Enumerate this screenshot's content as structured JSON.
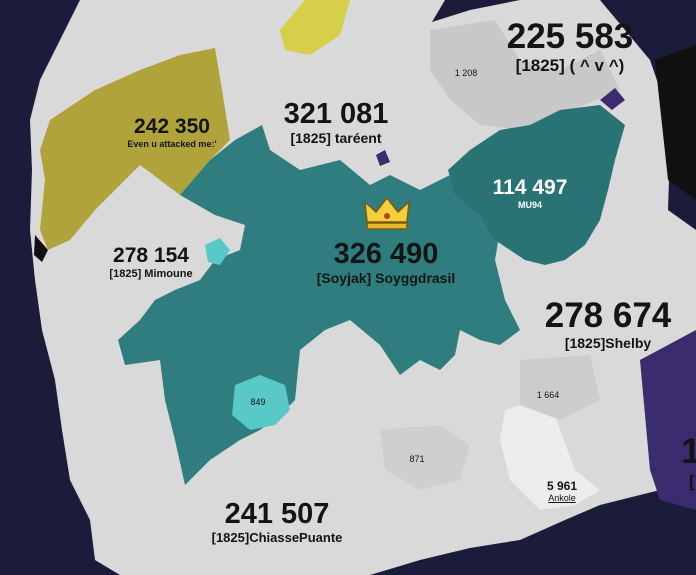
{
  "colors": {
    "ocean": "#1b1b3a",
    "neutral_land": "#d9d9d9",
    "soyggdrasil_teal": "#2f7d7e",
    "mu94_teal": "#2a7375",
    "olive": "#b0a33c",
    "yellow": "#d6cf4a",
    "light_teal": "#58c9c6",
    "purple": "#3a2c6e",
    "dark_block": "#111111"
  },
  "territories": [
    {
      "id": "top",
      "score": "225 583",
      "name": "[1825] ( ^ v ^)"
    },
    {
      "id": "tareent",
      "score": "321 081",
      "name": "[1825] taréent"
    },
    {
      "id": "even",
      "score": "242 350",
      "name": "Even u attacked me:'"
    },
    {
      "id": "mu94",
      "score": "114 497",
      "name": "MU94"
    },
    {
      "id": "soyggdrasil",
      "score": "326 490",
      "name": "[Soyjak]  Soyggdrasil",
      "leader": true
    },
    {
      "id": "mimoune",
      "score": "278 154",
      "name": "[1825] Mimoune"
    },
    {
      "id": "shelby",
      "score": "278 674",
      "name": "[1825]Shelby"
    },
    {
      "id": "chiasse",
      "score": "241 507",
      "name": "[1825]ChiassePuante"
    },
    {
      "id": "ankole",
      "score": "5 961",
      "name": "Ankole"
    }
  ],
  "small_counts": {
    "c1208": "1 208",
    "c1664": "1 664",
    "c871": "871",
    "c849": "849"
  },
  "edge_fragments": {
    "right_digit": "1",
    "right_bracket": "["
  },
  "icons": {
    "leader": "crown-icon"
  }
}
